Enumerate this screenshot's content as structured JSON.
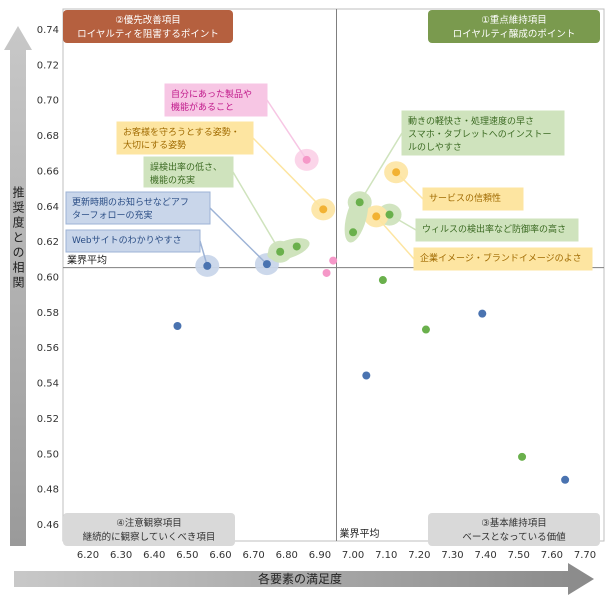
{
  "chart_data": {
    "type": "scatter",
    "xlabel": "各要素の満足度",
    "ylabel": "推奨度との相関",
    "xlim": [
      6.2,
      7.7
    ],
    "ylim": [
      0.46,
      0.74
    ],
    "xticks": [
      "6.20",
      "6.30",
      "6.40",
      "6.50",
      "6.60",
      "6.70",
      "6.80",
      "6.90",
      "7.00",
      "7.10",
      "7.20",
      "7.30",
      "7.40",
      "7.50",
      "7.60",
      "7.70"
    ],
    "yticks": [
      "0.46",
      "0.48",
      "0.50",
      "0.52",
      "0.54",
      "0.56",
      "0.58",
      "0.60",
      "0.62",
      "0.64",
      "0.66",
      "0.68",
      "0.70",
      "0.72",
      "0.74"
    ],
    "grid": false,
    "avg_x": 6.95,
    "avg_y": 0.605,
    "avg_label_h": "業界平均",
    "avg_label_v": "業界平均",
    "quadrants": {
      "top_left": {
        "line1": "②優先改善項目",
        "line2": "ロイヤルティを阻害するポイント",
        "color": "#b5603f"
      },
      "top_right": {
        "line1": "①重点維持項目",
        "line2": "ロイヤルティ醸成のポイント",
        "color": "#7a9a4e"
      },
      "bottom_left": {
        "line1": "④注意観察項目",
        "line2": "継続的に観察していくべき項目",
        "color": "#d9d9d9"
      },
      "bottom_right": {
        "line1": "③基本維持項目",
        "line2": "ベースとなっている価値",
        "color": "#d9d9d9"
      }
    },
    "points": [
      {
        "x": 6.56,
        "y": 0.606,
        "color": "#4a73b0",
        "label": "Webサイトのわかりやすさ"
      },
      {
        "x": 6.74,
        "y": 0.607,
        "color": "#4a73b0",
        "label": "更新時期のお知らせなどアフターフォローの充実"
      },
      {
        "x": 6.47,
        "y": 0.572,
        "color": "#4a73b0",
        "label": ""
      },
      {
        "x": 7.04,
        "y": 0.544,
        "color": "#4a73b0",
        "label": ""
      },
      {
        "x": 7.39,
        "y": 0.579,
        "color": "#4a73b0",
        "label": ""
      },
      {
        "x": 7.64,
        "y": 0.485,
        "color": "#4a73b0",
        "label": ""
      },
      {
        "x": 6.78,
        "y": 0.614,
        "color": "#6ab04c",
        "label": "誤検出率の低さ、機能の充実"
      },
      {
        "x": 6.83,
        "y": 0.617,
        "color": "#6ab04c",
        "label": ""
      },
      {
        "x": 7.02,
        "y": 0.642,
        "color": "#6ab04c",
        "label": "動きの軽快さ・処理速度の早さ スマホ・タブレットへのインストールのしやすさ"
      },
      {
        "x": 7.0,
        "y": 0.625,
        "color": "#6ab04c",
        "label": ""
      },
      {
        "x": 7.11,
        "y": 0.635,
        "color": "#6ab04c",
        "label": "ウィルスの検出率など防御率の高さ"
      },
      {
        "x": 7.09,
        "y": 0.598,
        "color": "#6ab04c",
        "label": ""
      },
      {
        "x": 7.22,
        "y": 0.57,
        "color": "#6ab04c",
        "label": ""
      },
      {
        "x": 7.51,
        "y": 0.498,
        "color": "#6ab04c",
        "label": ""
      },
      {
        "x": 6.91,
        "y": 0.638,
        "color": "#f2b233",
        "label": "お客様を守ろうとする姿勢・大切にする姿勢"
      },
      {
        "x": 7.13,
        "y": 0.659,
        "color": "#f2b233",
        "label": "サービスの信頼性"
      },
      {
        "x": 7.07,
        "y": 0.634,
        "color": "#f2b233",
        "label": "企業イメージ・ブランドイメージのよさ"
      },
      {
        "x": 6.86,
        "y": 0.666,
        "color": "#f598c8",
        "label": "自分にあった製品や機能があること"
      },
      {
        "x": 6.92,
        "y": 0.602,
        "color": "#f598c8",
        "label": ""
      },
      {
        "x": 6.94,
        "y": 0.609,
        "color": "#f598c8",
        "label": ""
      }
    ],
    "callouts": [
      {
        "lines": [
          "自分にあった製品や",
          "機能があること"
        ],
        "color": "pink",
        "target": 17
      },
      {
        "lines": [
          "お客様を守ろうとする姿勢・",
          "大切にする姿勢"
        ],
        "color": "yellow",
        "target": 14
      },
      {
        "lines": [
          "誤検出率の低さ、",
          "機能の充実"
        ],
        "color": "green",
        "target": 6
      },
      {
        "lines": [
          "更新時期のお知らせなどアフ",
          "ターフォローの充実"
        ],
        "color": "blue",
        "target": 1
      },
      {
        "lines": [
          "Webサイトのわかりやすさ"
        ],
        "color": "blue",
        "target": 0
      },
      {
        "lines": [
          "動きの軽快さ・処理速度の早さ",
          "スマホ・タブレットへのインストー",
          "ルのしやすさ"
        ],
        "color": "green",
        "target": 8
      },
      {
        "lines": [
          "サービスの信頼性"
        ],
        "color": "yellow",
        "target": 15
      },
      {
        "lines": [
          "ウィルスの検出率など防御率の高さ"
        ],
        "color": "green",
        "target": 10
      },
      {
        "lines": [
          "企業イメージ・ブランドイメージのよさ"
        ],
        "color": "yellow",
        "target": 16
      }
    ]
  }
}
